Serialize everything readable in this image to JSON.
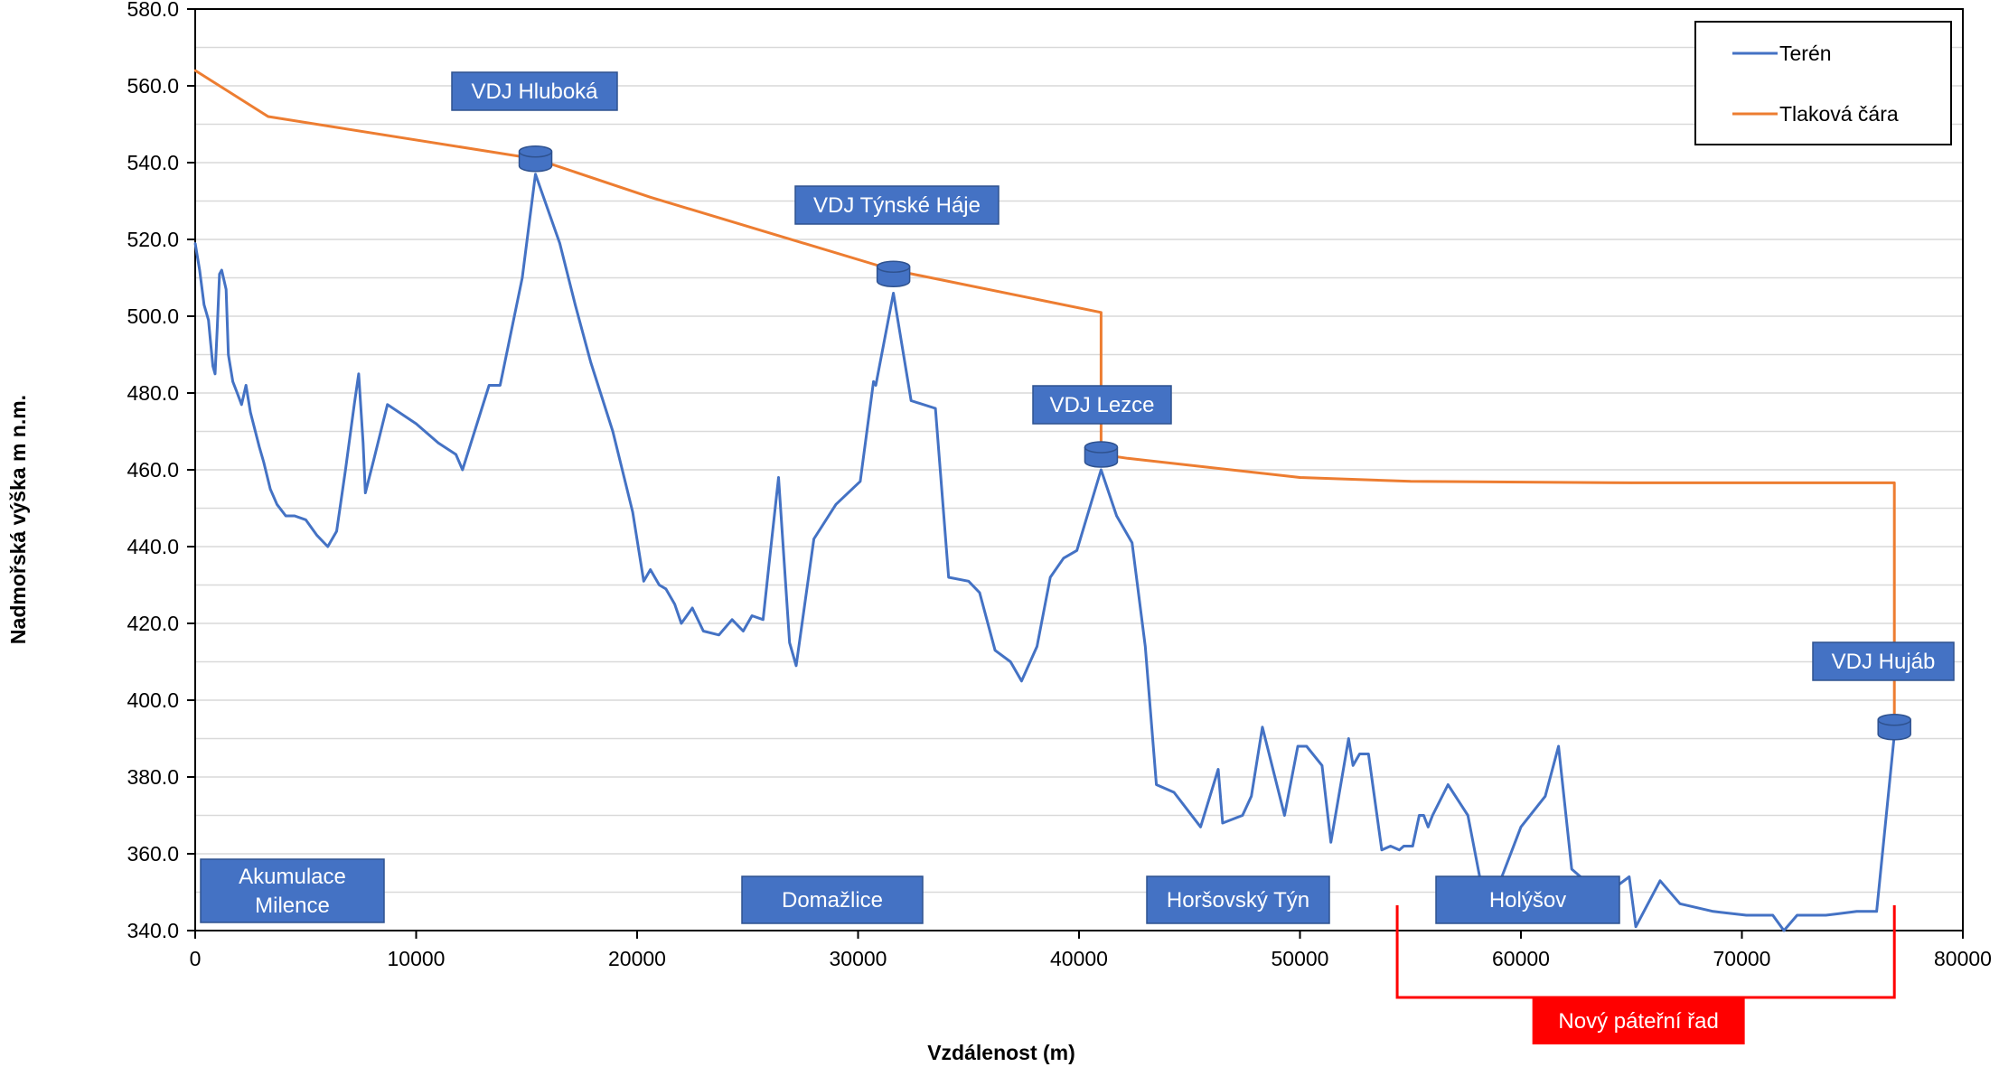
{
  "chart_data": {
    "type": "line",
    "xlabel": "Vzdálenost (m)",
    "ylabel": "Nadmořská výška m n.m.",
    "xlim": [
      0,
      80000
    ],
    "ylim": [
      340,
      580
    ],
    "x_ticks": [
      "0",
      "10000",
      "20000",
      "30000",
      "40000",
      "50000",
      "60000",
      "70000",
      "80000"
    ],
    "x_tick_values": [
      0,
      10000,
      20000,
      30000,
      40000,
      50000,
      60000,
      70000,
      80000
    ],
    "y_ticks": [
      "340.0",
      "360.0",
      "380.0",
      "400.0",
      "420.0",
      "440.0",
      "460.0",
      "480.0",
      "500.0",
      "520.0",
      "540.0",
      "560.0",
      "580.0"
    ],
    "y_tick_values": [
      340,
      360,
      380,
      400,
      420,
      440,
      460,
      480,
      500,
      520,
      540,
      560,
      580
    ],
    "grid": true,
    "legend_position": "top-right",
    "series": [
      {
        "name": "Terén",
        "color": "#4472C4",
        "points": [
          [
            0,
            519
          ],
          [
            200,
            512
          ],
          [
            400,
            503
          ],
          [
            600,
            499
          ],
          [
            700,
            493
          ],
          [
            800,
            487
          ],
          [
            900,
            485
          ],
          [
            1000,
            497
          ],
          [
            1100,
            511
          ],
          [
            1200,
            512
          ],
          [
            1400,
            507
          ],
          [
            1500,
            490
          ],
          [
            1700,
            483
          ],
          [
            1900,
            480
          ],
          [
            2100,
            477
          ],
          [
            2300,
            482
          ],
          [
            2500,
            475
          ],
          [
            2900,
            466
          ],
          [
            3100,
            462
          ],
          [
            3400,
            455
          ],
          [
            3700,
            451
          ],
          [
            4100,
            448
          ],
          [
            4500,
            448
          ],
          [
            5000,
            447
          ],
          [
            5500,
            443
          ],
          [
            6000,
            440
          ],
          [
            6400,
            444
          ],
          [
            6800,
            460
          ],
          [
            7200,
            477
          ],
          [
            7400,
            485
          ],
          [
            7600,
            467
          ],
          [
            7700,
            454
          ],
          [
            8100,
            463
          ],
          [
            8700,
            477
          ],
          [
            10000,
            472
          ],
          [
            11000,
            467
          ],
          [
            11800,
            464
          ],
          [
            12100,
            460
          ],
          [
            13300,
            482
          ],
          [
            13800,
            482
          ],
          [
            14800,
            510
          ],
          [
            15400,
            537
          ],
          [
            16500,
            519
          ],
          [
            17200,
            503
          ],
          [
            17900,
            488
          ],
          [
            18900,
            470
          ],
          [
            19800,
            449
          ],
          [
            20300,
            431
          ],
          [
            20600,
            434
          ],
          [
            21000,
            430
          ],
          [
            21300,
            429
          ],
          [
            21700,
            425
          ],
          [
            22000,
            420
          ],
          [
            22500,
            424
          ],
          [
            23000,
            418
          ],
          [
            23700,
            417
          ],
          [
            24300,
            421
          ],
          [
            24800,
            418
          ],
          [
            25200,
            422
          ],
          [
            25700,
            421
          ],
          [
            26000,
            437
          ],
          [
            26400,
            458
          ],
          [
            26900,
            415
          ],
          [
            27200,
            409
          ],
          [
            28000,
            442
          ],
          [
            29000,
            451
          ],
          [
            30100,
            457
          ],
          [
            30700,
            483
          ],
          [
            30800,
            482
          ],
          [
            31600,
            506
          ],
          [
            32400,
            478
          ],
          [
            33500,
            476
          ],
          [
            34100,
            432
          ],
          [
            35000,
            431
          ],
          [
            35500,
            428
          ],
          [
            36200,
            413
          ],
          [
            36900,
            410
          ],
          [
            37400,
            405
          ],
          [
            38100,
            414
          ],
          [
            38700,
            432
          ],
          [
            39300,
            437
          ],
          [
            39900,
            439
          ],
          [
            41000,
            460
          ],
          [
            41700,
            448
          ],
          [
            42400,
            441
          ],
          [
            43000,
            414
          ],
          [
            43500,
            378
          ],
          [
            44300,
            376
          ],
          [
            45500,
            367
          ],
          [
            46300,
            382
          ],
          [
            46500,
            368
          ],
          [
            47400,
            370
          ],
          [
            47800,
            375
          ],
          [
            48300,
            393
          ],
          [
            49300,
            370
          ],
          [
            49900,
            388
          ],
          [
            50300,
            388
          ],
          [
            51000,
            383
          ],
          [
            51400,
            363
          ],
          [
            52200,
            390
          ],
          [
            52400,
            383
          ],
          [
            52700,
            386
          ],
          [
            53100,
            386
          ],
          [
            53700,
            361
          ],
          [
            54100,
            362
          ],
          [
            54500,
            361
          ],
          [
            54700,
            362
          ],
          [
            55100,
            362
          ],
          [
            55400,
            370
          ],
          [
            55600,
            370
          ],
          [
            55800,
            367
          ],
          [
            56000,
            370
          ],
          [
            56700,
            378
          ],
          [
            57600,
            370
          ],
          [
            58200,
            352
          ],
          [
            59000,
            352
          ],
          [
            60000,
            367
          ],
          [
            61100,
            375
          ],
          [
            61700,
            388
          ],
          [
            62300,
            356
          ],
          [
            62700,
            354
          ],
          [
            63500,
            348
          ],
          [
            64900,
            354
          ],
          [
            65200,
            341
          ],
          [
            66300,
            353
          ],
          [
            67200,
            347
          ],
          [
            68700,
            345
          ],
          [
            70200,
            344
          ],
          [
            71400,
            344
          ],
          [
            71900,
            340
          ],
          [
            72500,
            344
          ],
          [
            73800,
            344
          ],
          [
            75200,
            345
          ],
          [
            76100,
            345
          ],
          [
            76900,
            391
          ]
        ]
      },
      {
        "name": "Tlaková čára",
        "color": "#ED7D31",
        "points": [
          [
            0,
            564
          ],
          [
            3300,
            552
          ],
          [
            15400,
            541
          ],
          [
            20600,
            531
          ],
          [
            31600,
            512
          ],
          [
            41000,
            501
          ],
          [
            41000,
            464
          ],
          [
            42200,
            463
          ],
          [
            50000,
            458
          ],
          [
            55000,
            457
          ],
          [
            65000,
            456.6
          ],
          [
            76900,
            456.6
          ],
          [
            76900,
            392
          ]
        ]
      }
    ],
    "annotations": [
      {
        "text": "VDJ Hluboká",
        "kind": "label"
      },
      {
        "text": "VDJ Týnské Háje",
        "kind": "label"
      },
      {
        "text": "VDJ Lezce",
        "kind": "label"
      },
      {
        "text": "VDJ Hujáb",
        "kind": "label"
      },
      {
        "text": "Akumulace\nMilence",
        "kind": "label"
      },
      {
        "text": "Domažlice",
        "kind": "label"
      },
      {
        "text": "Horšovský Týn",
        "kind": "label"
      },
      {
        "text": "Holýšov",
        "kind": "label"
      },
      {
        "text": "Nový páteřní řad",
        "kind": "bracket"
      }
    ],
    "reservoirs": [
      {
        "x": 15400,
        "y": 541
      },
      {
        "x": 31600,
        "y": 511
      },
      {
        "x": 41000,
        "y": 464
      },
      {
        "x": 76900,
        "y": 393
      }
    ],
    "bracket_range": [
      54400,
      76900
    ]
  },
  "colors": {
    "label_fill": "#4472C4",
    "label_text": "#ffffff",
    "bracket": "#ff0000",
    "grid": "#d9d9d9",
    "axis": "#000000"
  }
}
